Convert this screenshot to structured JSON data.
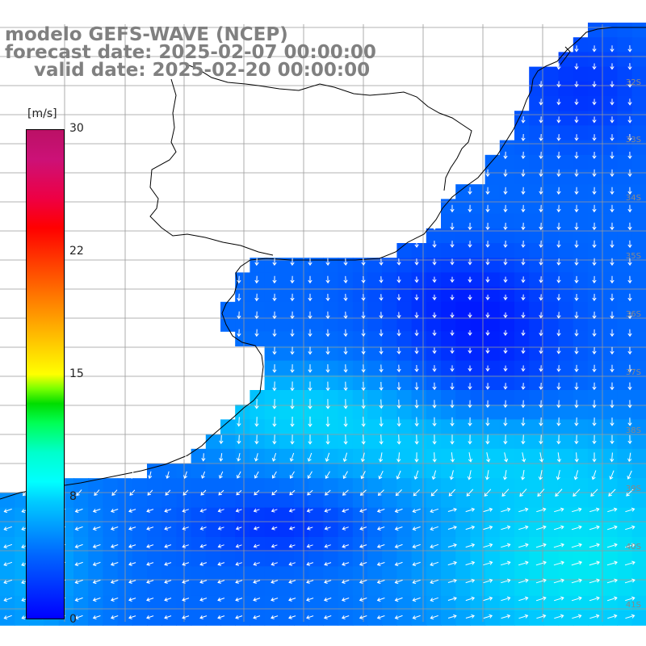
{
  "title": {
    "line1": "modelo GEFS-WAVE (NCEP)",
    "line2": "forecast date: 2025-02-07 00:00:00",
    "line3": "valid date: 2025-02-20 00:00:00"
  },
  "colorbar": {
    "unit": "[m/s]",
    "ticks": [
      "30",
      "22",
      "15",
      "8",
      "0"
    ],
    "tick_values": [
      30,
      22,
      15,
      8,
      0
    ],
    "min": 0,
    "max": 30,
    "colors": [
      "#0000ff",
      "#00ccff",
      "#00ffff",
      "#00dd00",
      "#ffff00",
      "#ff8800",
      "#ff0000",
      "#bb1166"
    ]
  },
  "map": {
    "latitude_labels": [
      "32S",
      "33S",
      "34S",
      "35S",
      "36S",
      "37S",
      "38S",
      "39S",
      "40S",
      "41S"
    ],
    "land_color": "#ffffff",
    "grid_color": "#9a9a9a",
    "vector_color": "#ffffff"
  }
}
